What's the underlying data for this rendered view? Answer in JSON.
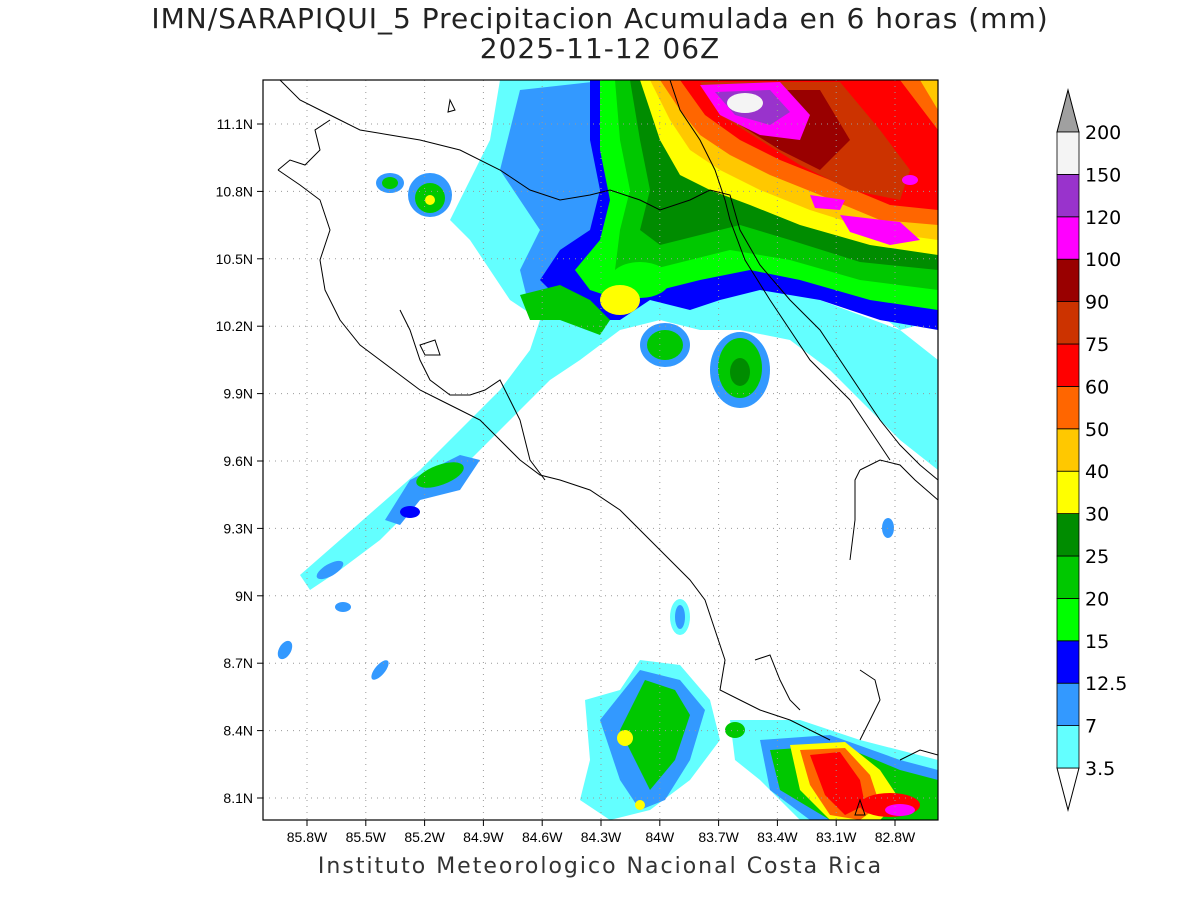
{
  "title": {
    "line1": "IMN/SARAPIQUI_5 Precipitacion Acumulada en 6 horas (mm)",
    "line2": "2025-11-12 06Z"
  },
  "footer": "Instituto Meteorologico Nacional Costa Rica",
  "map": {
    "lat_ticks": [
      "11.1N",
      "10.8N",
      "10.5N",
      "10.2N",
      "9.9N",
      "9.6N",
      "9.3N",
      "9N",
      "8.7N",
      "8.4N",
      "8.1N"
    ],
    "lon_ticks": [
      "85.8W",
      "85.5W",
      "85.2W",
      "84.9W",
      "84.6W",
      "84.3W",
      "84W",
      "83.7W",
      "83.4W",
      "83.1W",
      "82.8W"
    ],
    "grid": "dotted"
  },
  "colorbar": {
    "labels": [
      "3.5",
      "7",
      "12.5",
      "15",
      "20",
      "25",
      "30",
      "40",
      "50",
      "60",
      "75",
      "90",
      "100",
      "120",
      "150",
      "200"
    ],
    "colors": [
      "#63ffff",
      "#3399ff",
      "#0000ff",
      "#00ff00",
      "#00c800",
      "#008c00",
      "#ffff00",
      "#ffc800",
      "#ff6600",
      "#ff0000",
      "#cc3300",
      "#990000",
      "#ff00ff",
      "#9933cc",
      "#f4f4f4"
    ],
    "arrow_low": "#ffffff",
    "arrow_high": "#a0a0a0"
  }
}
